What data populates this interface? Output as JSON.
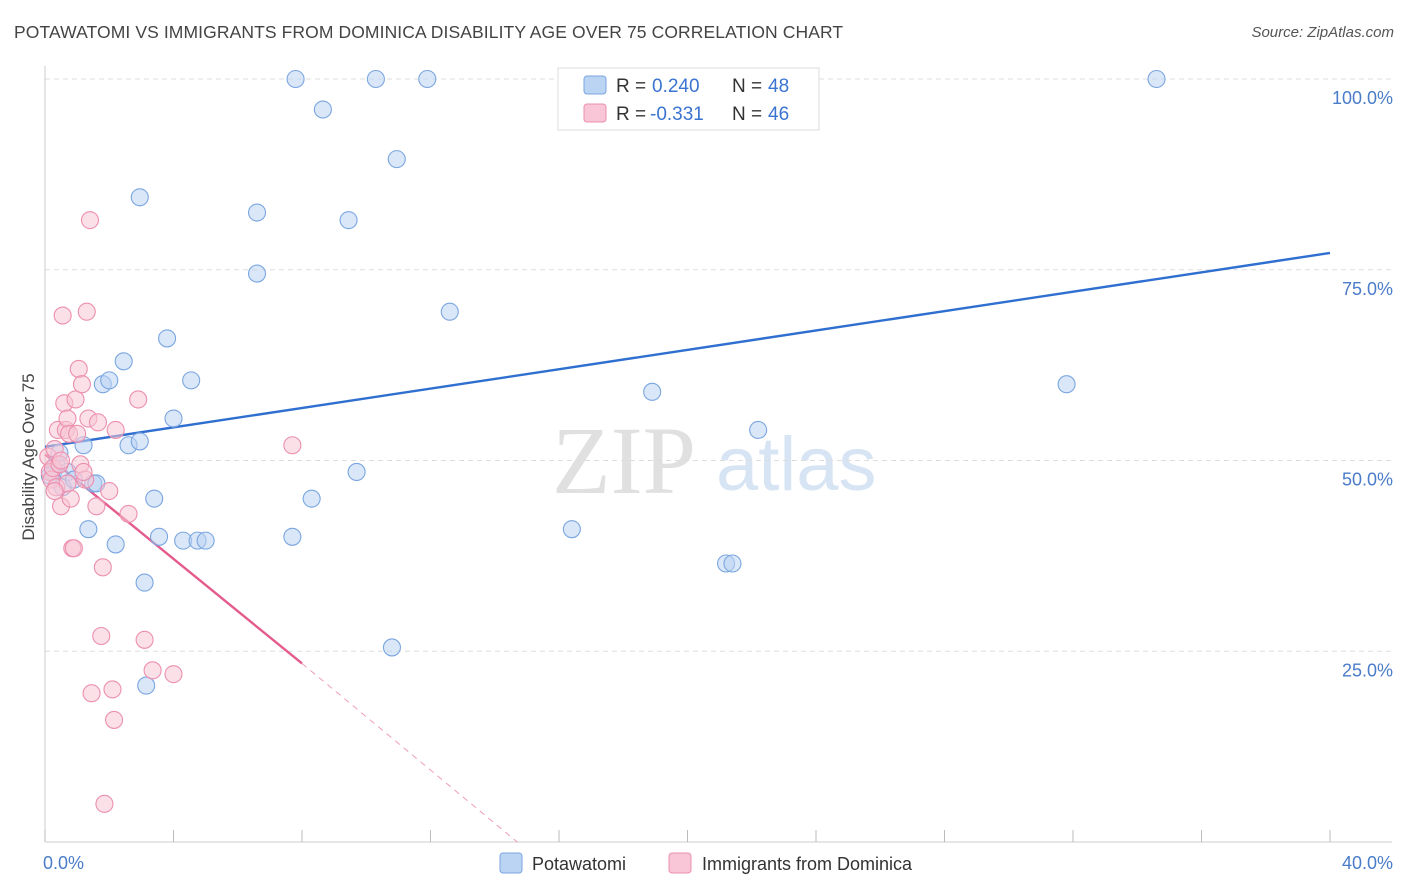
{
  "header": {
    "title": "POTAWATOMI VS IMMIGRANTS FROM DOMINICA DISABILITY AGE OVER 75 CORRELATION CHART",
    "source": "Source: ZipAtlas.com"
  },
  "watermark": {
    "zip": "ZIP",
    "atlas": "atlas"
  },
  "colors": {
    "blue_fill": "#bcd4f4",
    "blue_stroke": "#7aa6e0",
    "blue_line": "#2f6fd0",
    "pink_fill": "#f8c6d6",
    "pink_stroke": "#ec8fae",
    "pink_line": "#e45c8e",
    "tick_text": "#4a7cc9",
    "grid": "#dddddd"
  },
  "legend": {
    "rows": [
      {
        "r_label": "R =",
        "r_value": "0.240",
        "n_label": "N =",
        "n_value": "48"
      },
      {
        "r_label": "R =",
        "r_value": "-0.331",
        "n_label": "N =",
        "n_value": "46"
      }
    ]
  },
  "chart_data": {
    "type": "scatter",
    "title": "POTAWATOMI VS IMMIGRANTS FROM DOMINICA DISABILITY AGE OVER 75 CORRELATION CHART",
    "xlabel": "",
    "ylabel": "Disability Age Over 75",
    "xlim": [
      0,
      40
    ],
    "ylim": [
      0,
      102
    ],
    "x_tick_labels": [
      "0.0%",
      "40.0%"
    ],
    "y_ticks": [
      25,
      50,
      75,
      100
    ],
    "y_tick_labels": [
      "25.0%",
      "50.0%",
      "75.0%",
      "100.0%"
    ],
    "legend_position": "bottom-center",
    "series": [
      {
        "name": "Potawatomi",
        "color": "#7aa6e0",
        "trend": {
          "x": [
            0,
            40
          ],
          "y": [
            51.8,
            77.2
          ]
        },
        "points": [
          [
            0.25,
            48.5
          ],
          [
            0.35,
            49.5
          ],
          [
            0.45,
            51.0
          ],
          [
            0.55,
            46.5
          ],
          [
            0.7,
            48.5
          ],
          [
            1.2,
            52.0
          ],
          [
            1.35,
            41.0
          ],
          [
            1.5,
            47.0
          ],
          [
            1.6,
            47.0
          ],
          [
            1.8,
            60.0
          ],
          [
            2.0,
            60.5
          ],
          [
            2.2,
            39.0
          ],
          [
            2.45,
            63.0
          ],
          [
            2.6,
            52.0
          ],
          [
            2.95,
            52.5
          ],
          [
            3.1,
            34.0
          ],
          [
            3.15,
            20.5
          ],
          [
            3.4,
            45.0
          ],
          [
            3.55,
            40.0
          ],
          [
            3.8,
            66.0
          ],
          [
            4.0,
            55.5
          ],
          [
            4.3,
            39.5
          ],
          [
            4.55,
            60.5
          ],
          [
            4.75,
            39.5
          ],
          [
            5.0,
            39.5
          ],
          [
            6.6,
            74.5
          ],
          [
            7.7,
            40.0
          ],
          [
            8.3,
            45.0
          ],
          [
            9.7,
            48.5
          ],
          [
            10.8,
            25.5
          ],
          [
            12.6,
            69.5
          ],
          [
            16.4,
            41.0
          ],
          [
            18.9,
            59.0
          ],
          [
            21.2,
            36.5
          ],
          [
            21.4,
            36.5
          ],
          [
            22.2,
            54.0
          ],
          [
            31.8,
            60.0
          ],
          [
            2.95,
            84.5
          ],
          [
            6.6,
            82.5
          ],
          [
            7.8,
            100.0
          ],
          [
            8.65,
            96.0
          ],
          [
            9.45,
            81.5
          ],
          [
            10.3,
            100.0
          ],
          [
            10.95,
            89.5
          ],
          [
            11.9,
            100.0
          ],
          [
            34.6,
            100.0
          ],
          [
            0.9,
            47.5
          ],
          [
            0.15,
            48.0
          ]
        ]
      },
      {
        "name": "Immigrants from Dominica",
        "color": "#ec8fae",
        "trend": {
          "x": [
            0,
            8
          ],
          "y": [
            50.8,
            23.4
          ]
        },
        "trend_dashed": {
          "x": [
            8,
            14.7
          ],
          "y": [
            23.4,
            0
          ]
        },
        "points": [
          [
            0.1,
            50.5
          ],
          [
            0.15,
            48.5
          ],
          [
            0.2,
            47.5
          ],
          [
            0.25,
            49.0
          ],
          [
            0.3,
            51.5
          ],
          [
            0.35,
            46.5
          ],
          [
            0.4,
            54.0
          ],
          [
            0.45,
            49.5
          ],
          [
            0.5,
            44.0
          ],
          [
            0.55,
            69.0
          ],
          [
            0.6,
            57.5
          ],
          [
            0.65,
            54.0
          ],
          [
            0.7,
            55.5
          ],
          [
            0.75,
            53.5
          ],
          [
            0.8,
            45.0
          ],
          [
            0.85,
            38.5
          ],
          [
            0.9,
            38.5
          ],
          [
            0.95,
            58.0
          ],
          [
            1.0,
            53.5
          ],
          [
            1.05,
            62.0
          ],
          [
            1.1,
            49.5
          ],
          [
            1.15,
            60.0
          ],
          [
            1.25,
            47.5
          ],
          [
            1.3,
            69.5
          ],
          [
            1.35,
            55.5
          ],
          [
            1.45,
            19.5
          ],
          [
            1.6,
            44.0
          ],
          [
            1.65,
            55.0
          ],
          [
            1.75,
            27.0
          ],
          [
            1.8,
            36.0
          ],
          [
            1.85,
            5.0
          ],
          [
            2.1,
            20.0
          ],
          [
            2.15,
            16.0
          ],
          [
            2.2,
            54.0
          ],
          [
            2.6,
            43.0
          ],
          [
            2.9,
            58.0
          ],
          [
            3.1,
            26.5
          ],
          [
            3.35,
            22.5
          ],
          [
            4.0,
            22.0
          ],
          [
            7.7,
            52.0
          ],
          [
            1.4,
            81.5
          ],
          [
            0.7,
            47.0
          ],
          [
            0.5,
            50.0
          ],
          [
            1.2,
            48.5
          ],
          [
            2.0,
            46.0
          ],
          [
            0.3,
            46.0
          ]
        ]
      }
    ]
  },
  "bottom_legend": {
    "items": [
      {
        "label": "Potawatomi"
      },
      {
        "label": "Immigrants from Dominica"
      }
    ]
  }
}
